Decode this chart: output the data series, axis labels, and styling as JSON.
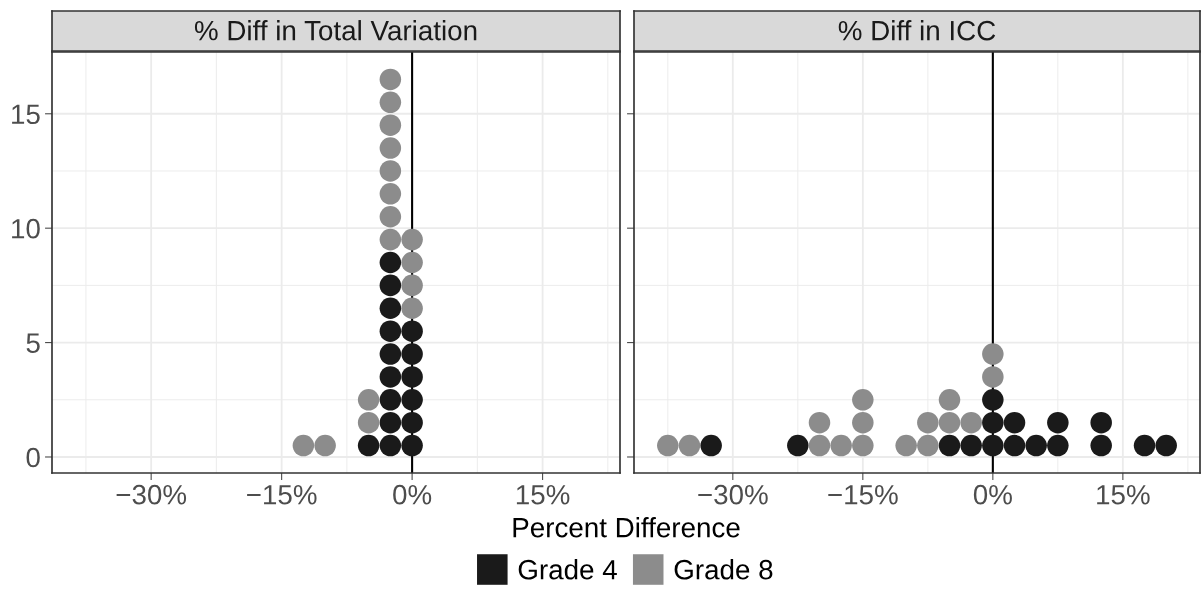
{
  "chart_data": [
    {
      "type": "scatter",
      "title": "% Diff in Total Variation",
      "xlabel": "Percent Difference",
      "marker": "circle",
      "grid": true,
      "legend": "bottom",
      "xlim": [
        -41.4,
        23.9
      ],
      "xticks": [
        {
          "value": -30,
          "label": "−30%"
        },
        {
          "value": -15,
          "label": "−15%"
        },
        {
          "value": 0,
          "label": "0%"
        },
        {
          "value": 15,
          "label": "15%"
        }
      ],
      "ylim": [
        -0.7,
        17.7
      ],
      "yticks": [
        0,
        5,
        10,
        15
      ],
      "ref_lines": [
        {
          "axis": "x",
          "value": 0,
          "color": "#000000"
        }
      ],
      "series": [
        {
          "name": "Grade 4",
          "color": "#1a1a1a",
          "x": [
            -5,
            -2.5,
            -2.5,
            -2.5,
            -2.5,
            -2.5,
            -2.5,
            -2.5,
            -2.5,
            -2.5,
            0,
            0,
            0,
            0,
            0,
            0
          ],
          "values": [
            0.5,
            0.5,
            1.5,
            2.5,
            3.5,
            4.5,
            5.5,
            6.5,
            7.5,
            8.5,
            0.5,
            1.5,
            2.5,
            3.5,
            4.5,
            5.5
          ]
        },
        {
          "name": "Grade 8",
          "color": "#8c8c8c",
          "x": [
            -12.5,
            -10,
            -5,
            -5,
            -2.5,
            -2.5,
            -2.5,
            -2.5,
            -2.5,
            -2.5,
            -2.5,
            -2.5,
            0,
            0,
            0,
            0
          ],
          "values": [
            0.5,
            0.5,
            1.5,
            2.5,
            9.5,
            10.5,
            11.5,
            12.5,
            13.5,
            14.5,
            15.5,
            16.5,
            6.5,
            7.5,
            8.5,
            9.5
          ]
        }
      ]
    },
    {
      "type": "scatter",
      "title": "% Diff in ICC",
      "marker": "circle",
      "grid": true,
      "tick_labels": "x",
      "xlim": [
        -41.4,
        23.9
      ],
      "xticks": [
        {
          "value": -30,
          "label": "−30%"
        },
        {
          "value": -15,
          "label": "−15%"
        },
        {
          "value": 0,
          "label": "0%"
        },
        {
          "value": 15,
          "label": "15%"
        }
      ],
      "ylim": [
        -0.7,
        17.7
      ],
      "yticks": [
        0,
        5,
        10,
        15
      ],
      "ref_lines": [
        {
          "axis": "x",
          "value": 0,
          "color": "#000000"
        }
      ],
      "series": [
        {
          "color": "#1a1a1a",
          "x": [
            -32.5,
            -22.5,
            -5,
            -2.5,
            0,
            0,
            0,
            2.5,
            2.5,
            5,
            7.5,
            7.5,
            12.5,
            12.5,
            17.5,
            20
          ],
          "values": [
            0.5,
            0.5,
            0.5,
            0.5,
            0.5,
            1.5,
            2.5,
            0.5,
            1.5,
            0.5,
            0.5,
            1.5,
            0.5,
            1.5,
            0.5,
            0.5
          ]
        },
        {
          "color": "#8c8c8c",
          "x": [
            -37.5,
            -35,
            -20,
            -20,
            -17.5,
            -15,
            -15,
            -15,
            -10,
            -7.5,
            -7.5,
            -5,
            -5,
            -2.5,
            0,
            0
          ],
          "values": [
            0.5,
            0.5,
            0.5,
            1.5,
            0.5,
            0.5,
            1.5,
            2.5,
            0.5,
            0.5,
            1.5,
            1.5,
            2.5,
            1.5,
            3.5,
            4.5
          ]
        }
      ]
    }
  ]
}
